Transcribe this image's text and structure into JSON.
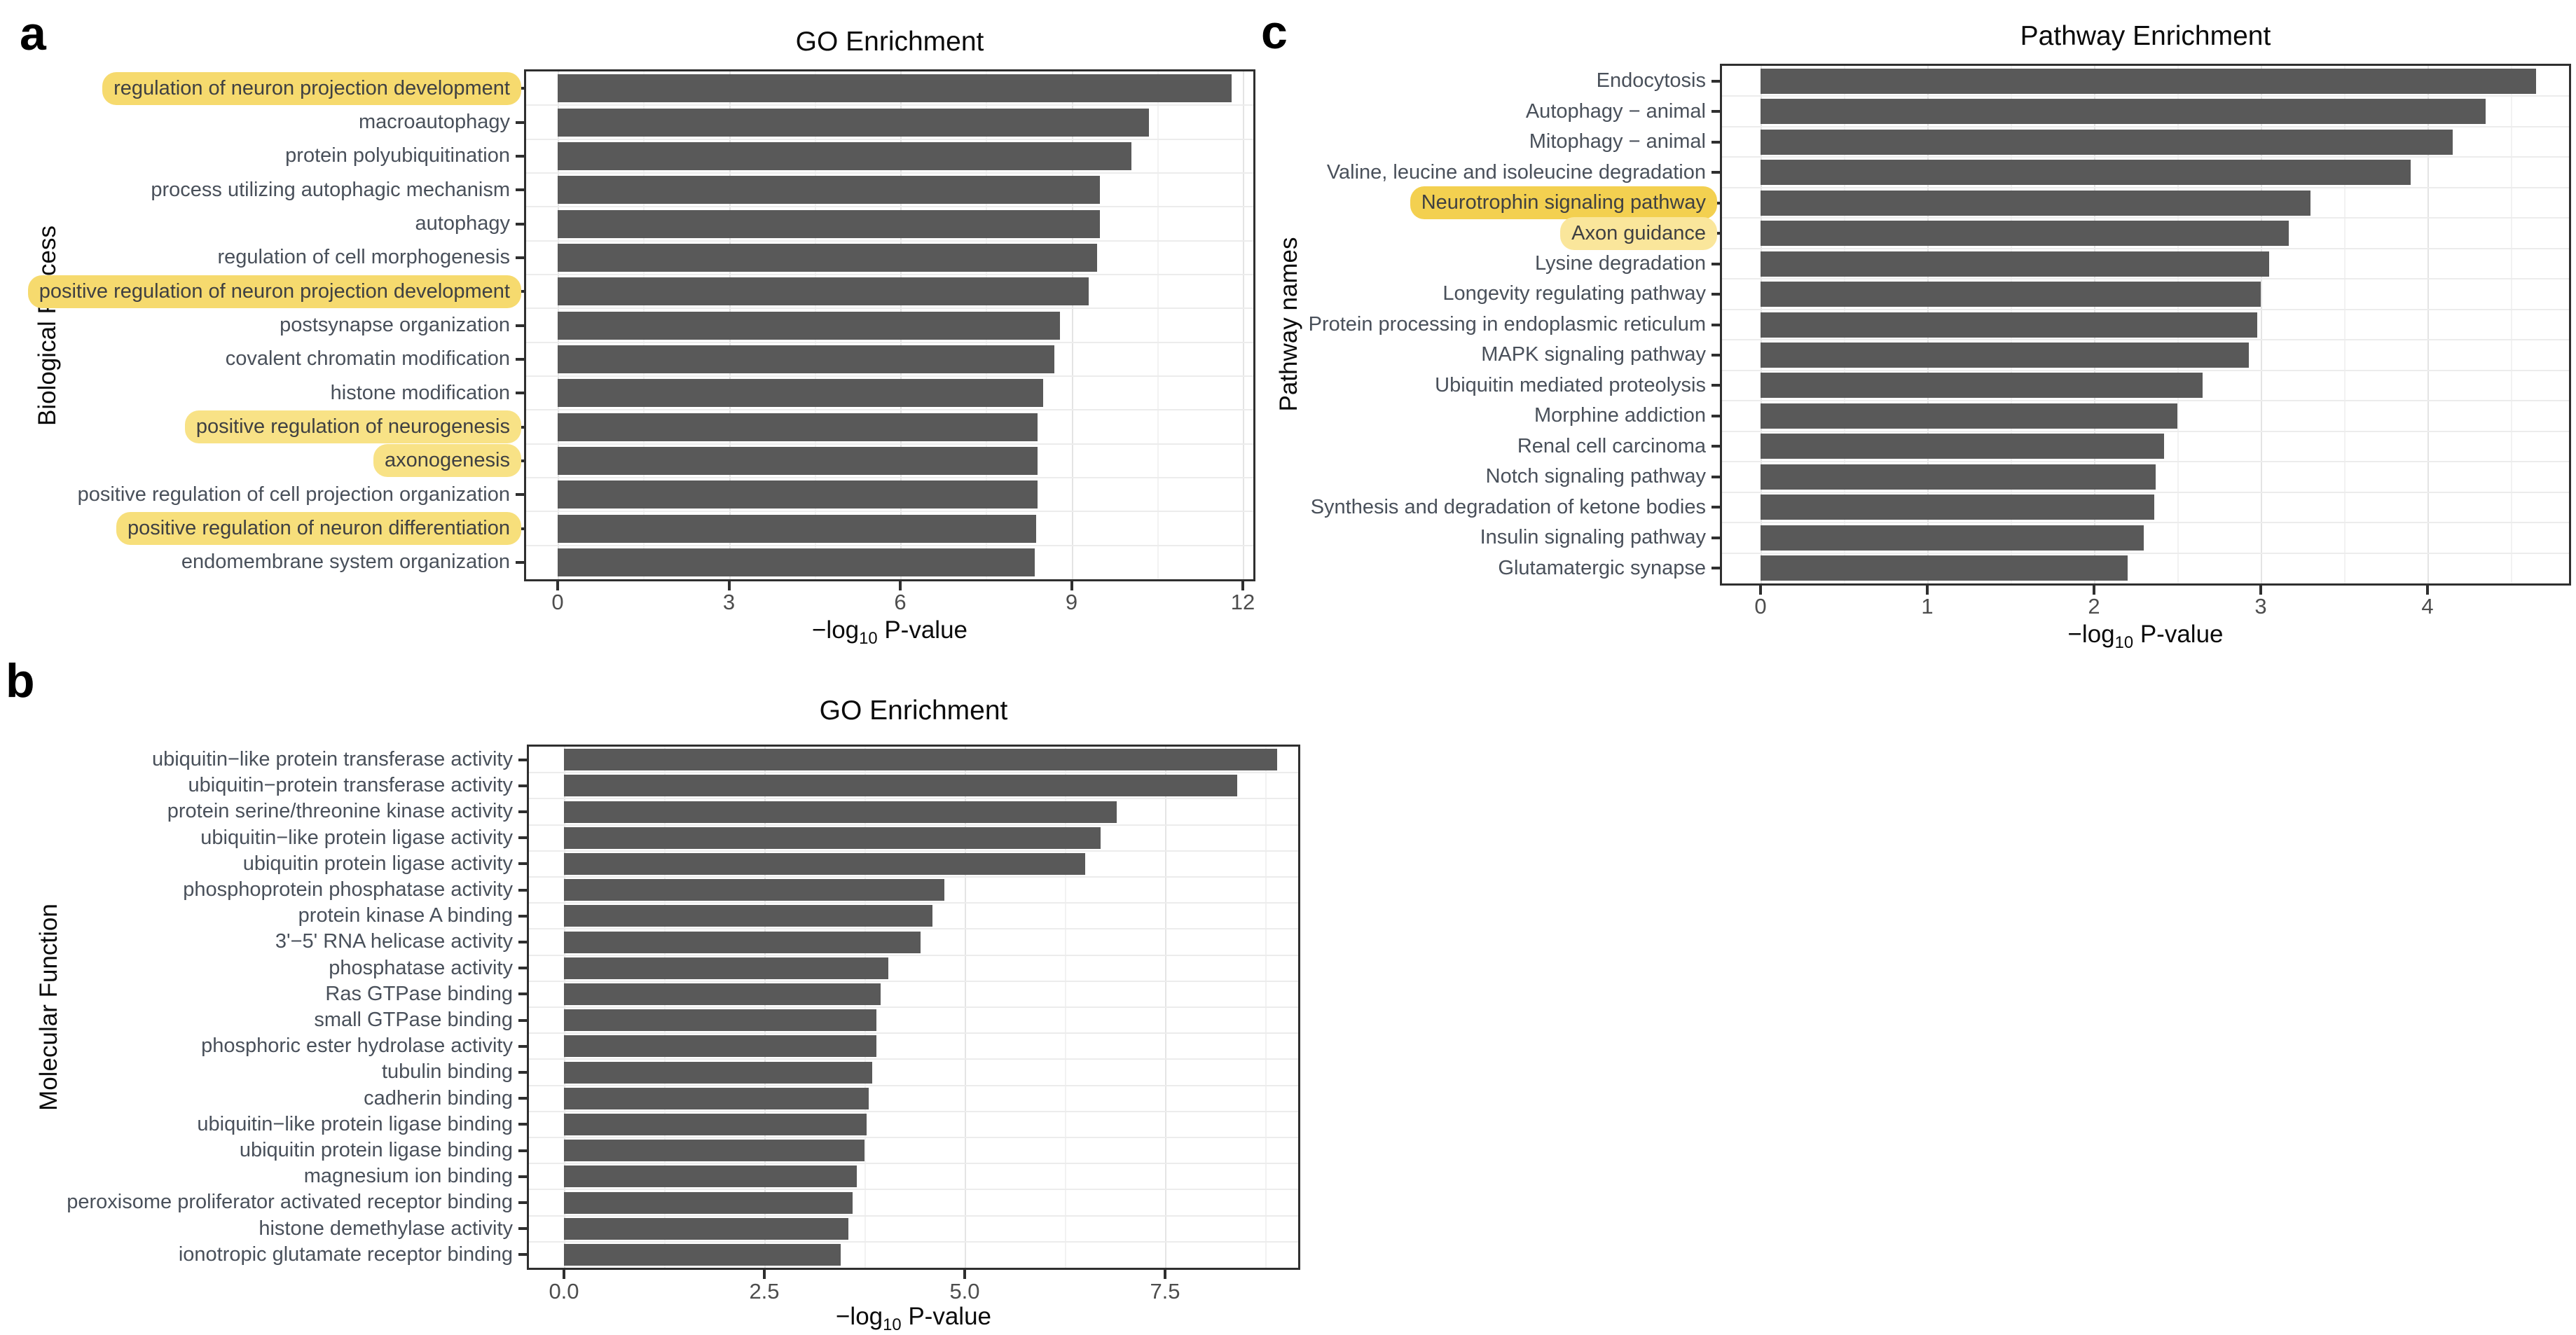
{
  "figure": {
    "background": "#ffffff",
    "colors": {
      "bar_fill": "#595959",
      "panel_border": "#2f2f2f",
      "grid_major": "#e4e4e4",
      "grid_minor": "#f2f2f2",
      "axis_text": "#4d4d4d",
      "category_text": "#49505a",
      "title_text": "#0b0b0b",
      "highlight_yellow": "#f6dc72"
    }
  },
  "chart_data": [
    {
      "type": "bar",
      "orientation": "horizontal",
      "panel_label": "a",
      "title": "GO Enrichment",
      "ylabel": "Biological Process",
      "xlabel": "−log10 P-value",
      "xlabel_parts": {
        "pre": "−log",
        "sub": "10",
        "post": " P-value"
      },
      "xticks": [
        "0",
        "3",
        "6",
        "9",
        "12"
      ],
      "xtick_values": [
        0,
        3,
        6,
        9,
        12
      ],
      "xlim": [
        0,
        12.3
      ],
      "grid": true,
      "legend": "none",
      "bars": [
        {
          "label": "regulation of neuron projection development",
          "value": 11.8,
          "highlighted": true,
          "highlight_color": "#f6da6e"
        },
        {
          "label": "macroautophagy",
          "value": 10.35,
          "highlighted": false
        },
        {
          "label": "protein polyubiquitination",
          "value": 10.05,
          "highlighted": false
        },
        {
          "label": "process utilizing autophagic mechanism",
          "value": 9.5,
          "highlighted": false
        },
        {
          "label": "autophagy",
          "value": 9.5,
          "highlighted": false
        },
        {
          "label": "regulation of cell morphogenesis",
          "value": 9.45,
          "highlighted": false
        },
        {
          "label": "positive regulation of neuron projection development",
          "value": 9.3,
          "highlighted": true,
          "highlight_color": "#f6da6e"
        },
        {
          "label": "postsynapse organization",
          "value": 8.8,
          "highlighted": false
        },
        {
          "label": "covalent chromatin modification",
          "value": 8.7,
          "highlighted": false
        },
        {
          "label": "histone modification",
          "value": 8.5,
          "highlighted": false
        },
        {
          "label": "positive regulation of neurogenesis",
          "value": 8.4,
          "highlighted": true,
          "highlight_color": "#f8e286"
        },
        {
          "label": "axonogenesis",
          "value": 8.4,
          "highlighted": true,
          "highlight_color": "#f8e286"
        },
        {
          "label": "positive regulation of cell projection organization",
          "value": 8.4,
          "highlighted": false
        },
        {
          "label": "positive regulation of neuron differentiation",
          "value": 8.38,
          "highlighted": true,
          "highlight_color": "#f7df7b"
        },
        {
          "label": "endomembrane system organization",
          "value": 8.35,
          "highlighted": false
        }
      ]
    },
    {
      "type": "bar",
      "orientation": "horizontal",
      "panel_label": "b",
      "title": "GO Enrichment",
      "ylabel": "Molecular Function",
      "xlabel": "−log10 P-value",
      "xlabel_parts": {
        "pre": "−log",
        "sub": "10",
        "post": " P-value"
      },
      "xticks": [
        "0.0",
        "2.5",
        "5.0",
        "7.5"
      ],
      "xtick_values": [
        0,
        2.5,
        5,
        7.5
      ],
      "xlim": [
        0,
        9.2
      ],
      "grid": true,
      "legend": "none",
      "bars": [
        {
          "label": "ubiquitin−like protein transferase activity",
          "value": 8.9,
          "highlighted": false
        },
        {
          "label": "ubiquitin−protein transferase activity",
          "value": 8.4,
          "highlighted": false
        },
        {
          "label": "protein serine/threonine kinase activity",
          "value": 6.9,
          "highlighted": false
        },
        {
          "label": "ubiquitin−like protein ligase activity",
          "value": 6.7,
          "highlighted": false
        },
        {
          "label": "ubiquitin protein ligase activity",
          "value": 6.5,
          "highlighted": false
        },
        {
          "label": "phosphoprotein phosphatase activity",
          "value": 4.75,
          "highlighted": false
        },
        {
          "label": "protein kinase A binding",
          "value": 4.6,
          "highlighted": false
        },
        {
          "label": "3'−5' RNA helicase activity",
          "value": 4.45,
          "highlighted": false
        },
        {
          "label": "phosphatase activity",
          "value": 4.05,
          "highlighted": false
        },
        {
          "label": "Ras GTPase binding",
          "value": 3.95,
          "highlighted": false
        },
        {
          "label": "small GTPase binding",
          "value": 3.9,
          "highlighted": false
        },
        {
          "label": "phosphoric ester hydrolase activity",
          "value": 3.9,
          "highlighted": false
        },
        {
          "label": "tubulin binding",
          "value": 3.85,
          "highlighted": false
        },
        {
          "label": "cadherin binding",
          "value": 3.8,
          "highlighted": false
        },
        {
          "label": "ubiquitin−like protein ligase binding",
          "value": 3.78,
          "highlighted": false
        },
        {
          "label": "ubiquitin protein ligase binding",
          "value": 3.75,
          "highlighted": false
        },
        {
          "label": "magnesium ion binding",
          "value": 3.65,
          "highlighted": false
        },
        {
          "label": "peroxisome proliferator activated receptor binding",
          "value": 3.6,
          "highlighted": false
        },
        {
          "label": "histone demethylase activity",
          "value": 3.55,
          "highlighted": false
        },
        {
          "label": "ionotropic glutamate receptor binding",
          "value": 3.45,
          "highlighted": false
        }
      ]
    },
    {
      "type": "bar",
      "orientation": "horizontal",
      "panel_label": "c",
      "title": "Pathway Enrichment",
      "ylabel": "Pathway names",
      "xlabel": "−log10 P-value",
      "xlabel_parts": {
        "pre": "−log",
        "sub": "10",
        "post": " P-value"
      },
      "xticks": [
        "0",
        "1",
        "2",
        "3",
        "4"
      ],
      "xtick_values": [
        0,
        1,
        2,
        3,
        4
      ],
      "xlim": [
        0,
        4.87
      ],
      "grid": true,
      "legend": "none",
      "bars": [
        {
          "label": "Endocytosis",
          "value": 4.65,
          "highlighted": false
        },
        {
          "label": "Autophagy − animal",
          "value": 4.35,
          "highlighted": false
        },
        {
          "label": "Mitophagy − animal",
          "value": 4.15,
          "highlighted": false
        },
        {
          "label": "Valine, leucine and isoleucine degradation",
          "value": 3.9,
          "highlighted": false
        },
        {
          "label": "Neurotrophin signaling pathway",
          "value": 3.3,
          "highlighted": true,
          "highlight_color": "#f3d050"
        },
        {
          "label": "Axon guidance",
          "value": 3.17,
          "highlighted": true,
          "highlight_color": "#fae69b"
        },
        {
          "label": "Lysine degradation",
          "value": 3.05,
          "highlighted": false
        },
        {
          "label": "Longevity regulating pathway",
          "value": 3.0,
          "highlighted": false
        },
        {
          "label": "Protein processing in endoplasmic reticulum",
          "value": 2.98,
          "highlighted": false
        },
        {
          "label": "MAPK signaling pathway",
          "value": 2.93,
          "highlighted": false
        },
        {
          "label": "Ubiquitin mediated proteolysis",
          "value": 2.65,
          "highlighted": false
        },
        {
          "label": "Morphine addiction",
          "value": 2.5,
          "highlighted": false
        },
        {
          "label": "Renal cell carcinoma",
          "value": 2.42,
          "highlighted": false
        },
        {
          "label": "Notch signaling pathway",
          "value": 2.37,
          "highlighted": false
        },
        {
          "label": "Synthesis and degradation of ketone bodies",
          "value": 2.36,
          "highlighted": false
        },
        {
          "label": "Insulin signaling pathway",
          "value": 2.3,
          "highlighted": false
        },
        {
          "label": "Glutamatergic synapse",
          "value": 2.2,
          "highlighted": false
        }
      ]
    }
  ]
}
